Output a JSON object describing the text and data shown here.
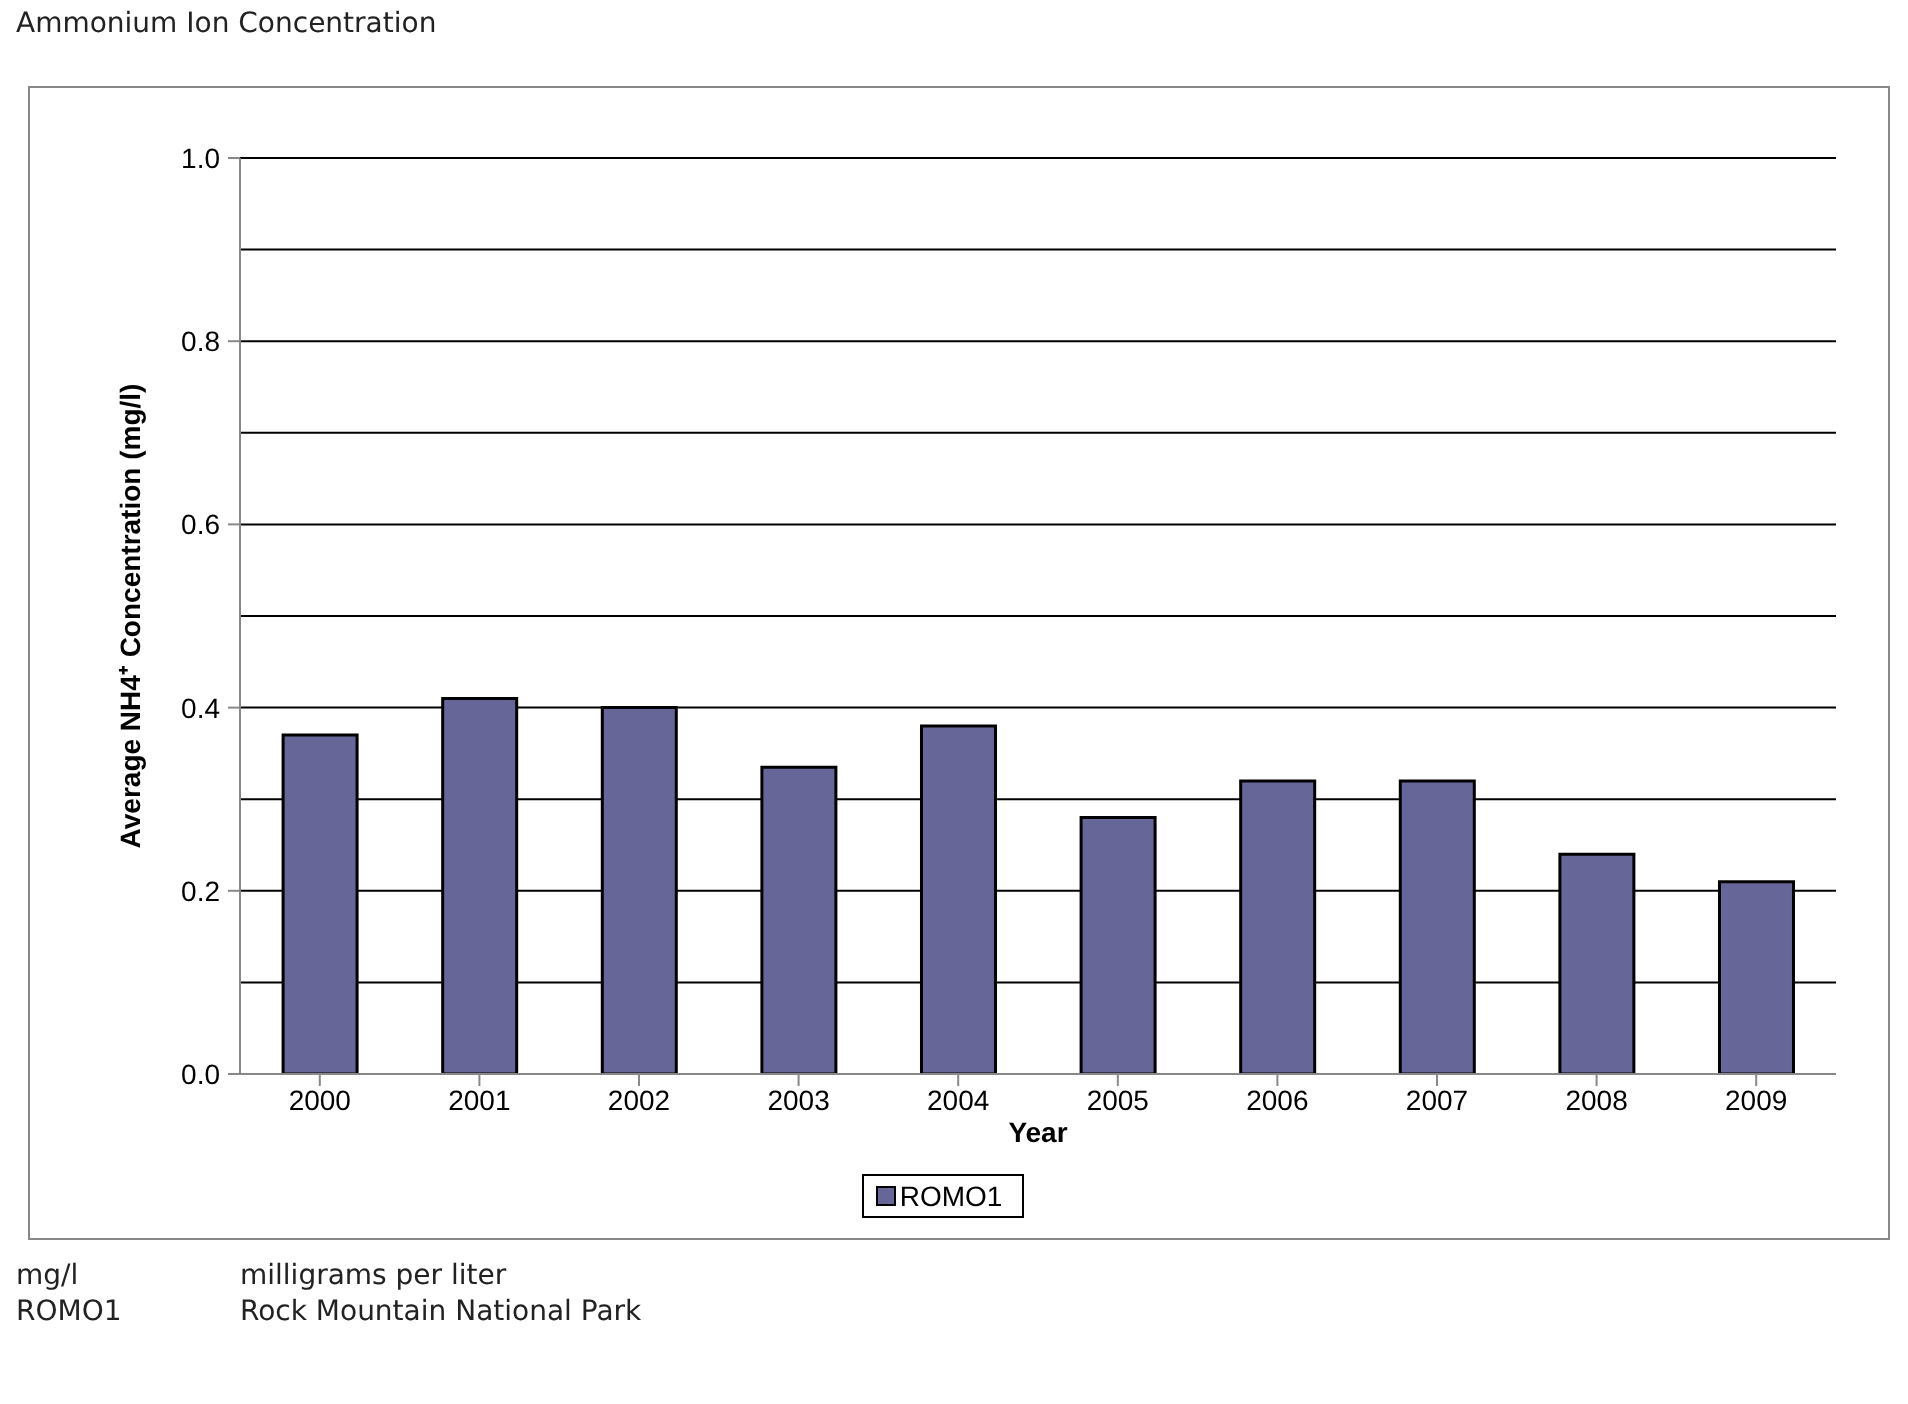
{
  "chart_data": {
    "type": "bar",
    "title": "Ammonium Ion Concentration",
    "xlabel": "Year",
    "ylabel": "Average NH4⁺ Concentration (mg/l)",
    "categories": [
      "2000",
      "2001",
      "2002",
      "2003",
      "2004",
      "2005",
      "2006",
      "2007",
      "2008",
      "2009"
    ],
    "series": [
      {
        "name": "ROMO1",
        "color": "#666699",
        "values": [
          0.37,
          0.41,
          0.4,
          0.335,
          0.38,
          0.28,
          0.32,
          0.32,
          0.24,
          0.21
        ]
      }
    ],
    "ylim": [
      0,
      1
    ],
    "yticks": [
      "0.0",
      {
        "value": 0.1,
        "label": null
      },
      {
        "value": 0.2,
        "label": "0.2"
      },
      {
        "value": 0.3,
        "label": null
      },
      {
        "value": 0.4,
        "label": "0.4"
      },
      {
        "value": 0.5,
        "label": null
      },
      {
        "value": 0.6,
        "label": "0.6"
      },
      {
        "value": 0.7,
        "label": null
      },
      {
        "value": 0.8,
        "label": "0.8"
      },
      {
        "value": 0.9,
        "label": null
      },
      {
        "value": 1,
        "label": "1.0"
      }
    ],
    "grid": "y",
    "legend": "bottom",
    "annotations": [
      "mg/l",
      "milligrams per liter",
      "ROMO1",
      "Rock Mountain National Park"
    ]
  }
}
